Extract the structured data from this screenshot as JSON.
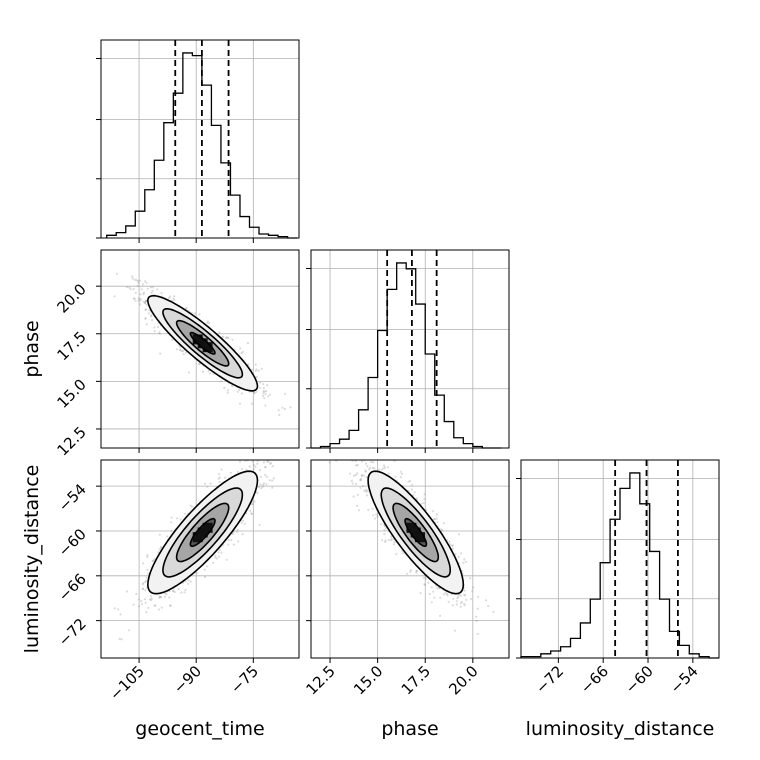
{
  "figure": {
    "type": "corner-plot"
  },
  "parameters": [
    {
      "name": "geocent_time",
      "label": "geocent_time",
      "range": [
        -115,
        -63
      ],
      "ticks": [
        -105,
        -90,
        -75
      ],
      "tick_labels": [
        "−105",
        "−90",
        "−75"
      ]
    },
    {
      "name": "phase",
      "label": "phase",
      "range": [
        11.5,
        21.9
      ],
      "ticks": [
        12.5,
        15.0,
        17.5,
        20.0
      ],
      "tick_labels": [
        "12.5",
        "15.0",
        "17.5",
        "20.0"
      ]
    },
    {
      "name": "luminosity_distance",
      "label": "luminosity_distance",
      "range": [
        -77,
        -50.5
      ],
      "ticks": [
        -72,
        -66,
        -60,
        -54
      ],
      "tick_labels": [
        "−72",
        "−66",
        "−60",
        "−54"
      ]
    }
  ],
  "chart_data": {
    "type": "corner",
    "diagonal": [
      {
        "param": "geocent_time",
        "type": "histogram",
        "bins": 20,
        "edges_range": [
          -113.5,
          -63.5
        ],
        "counts": [
          2,
          4,
          9,
          20,
          36,
          58,
          86,
          108,
          138,
          136,
          114,
          84,
          56,
          32,
          16,
          8,
          3,
          2,
          1,
          0
        ],
        "quantile_lines": [
          -95.5,
          -88.5,
          -81.5
        ]
      },
      {
        "param": "phase",
        "type": "histogram",
        "bins": 20,
        "edges_range": [
          11.5,
          21.5
        ],
        "counts": [
          0,
          1,
          3,
          6,
          12,
          26,
          48,
          80,
          108,
          126,
          122,
          98,
          64,
          36,
          18,
          7,
          3,
          1,
          0,
          0
        ],
        "quantile_lines": [
          15.5,
          16.8,
          18.1
        ]
      },
      {
        "param": "luminosity_distance",
        "type": "histogram",
        "bins": 20,
        "edges_range": [
          -77.0,
          -50.5
        ],
        "counts": [
          1,
          1,
          3,
          5,
          8,
          14,
          25,
          42,
          68,
          99,
          121,
          132,
          110,
          76,
          42,
          19,
          9,
          3,
          1,
          0
        ],
        "quantile_lines": [
          -64.4,
          -60.2,
          -56.0
        ]
      }
    ],
    "pairs": [
      {
        "x": "geocent_time",
        "y": "phase",
        "type": "2d-histogram-contour",
        "correlation": -0.9,
        "mean": [
          -88.3,
          17.0
        ],
        "sd": [
          7.2,
          1.25
        ]
      },
      {
        "x": "geocent_time",
        "y": "luminosity_distance",
        "type": "2d-histogram-contour",
        "correlation": 0.85,
        "mean": [
          -88.3,
          -60.2
        ],
        "sd": [
          7.2,
          4.1
        ]
      },
      {
        "x": "phase",
        "y": "luminosity_distance",
        "type": "2d-histogram-contour",
        "correlation": -0.85,
        "mean": [
          17.0,
          -60.2
        ],
        "sd": [
          1.25,
          4.1
        ]
      }
    ],
    "colors": {
      "line": "#000000",
      "grid": "#b0b0b0",
      "scatter": "#999999"
    },
    "grid": true
  }
}
